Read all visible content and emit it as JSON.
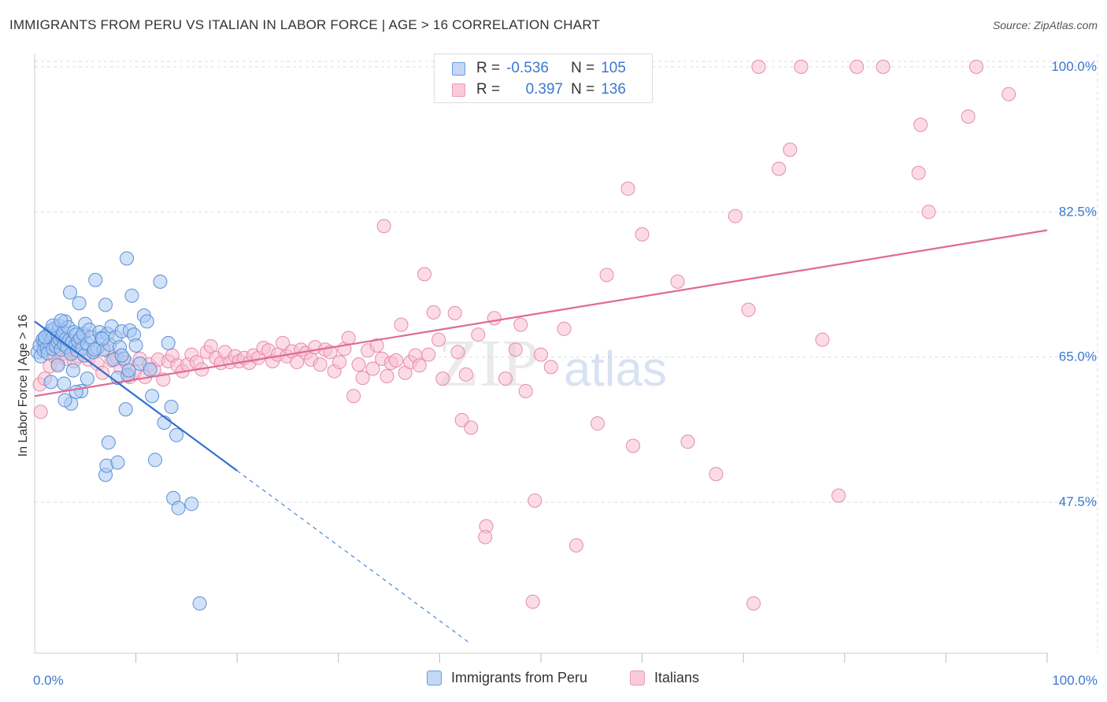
{
  "header": {
    "title": "IMMIGRANTS FROM PERU VS ITALIAN IN LABOR FORCE | AGE > 16 CORRELATION CHART",
    "source": "Source: ZipAtlas.com"
  },
  "legend_stats": {
    "peru": {
      "r_label": "R =",
      "r_value": "-0.536",
      "n_label": "N =",
      "n_value": "105"
    },
    "italians": {
      "r_label": "R =",
      "r_value": "0.397",
      "n_label": "N =",
      "n_value": "136"
    }
  },
  "bottom_legend": {
    "peru": "Immigrants from Peru",
    "italians": "Italians"
  },
  "watermark": {
    "zip": "ZIP",
    "atlas": "atlas"
  },
  "colors": {
    "peru_fill": "#a9c8f2",
    "peru_stroke": "#5a90d8",
    "peru_line": "#2f6fd0",
    "italians_fill": "#f7bfd0",
    "italians_stroke": "#e88aaa",
    "italians_line": "#e06a93",
    "tick_label": "#3b78d0",
    "grid": "#dddddd"
  },
  "chart_data": {
    "type": "scatter",
    "title": "IMMIGRANTS FROM PERU VS ITALIAN IN LABOR FORCE | AGE > 16 CORRELATION CHART",
    "xlabel": "",
    "ylabel": "In Labor Force | Age > 16",
    "xlim": [
      0,
      100
    ],
    "ylim": [
      29.3,
      101.6
    ],
    "x_tick_labels": [
      {
        "value": 0,
        "label": "0.0%"
      },
      {
        "value": 100,
        "label": "100.0%"
      }
    ],
    "y_tick_labels": [
      {
        "value": 100,
        "label": "100.0%"
      },
      {
        "value": 82.5,
        "label": "82.5%"
      },
      {
        "value": 65,
        "label": "65.0%"
      },
      {
        "value": 47.5,
        "label": "47.5%"
      }
    ],
    "grid": true,
    "legend_position": "top-center",
    "series": [
      {
        "name": "Immigrants from Peru",
        "r": -0.536,
        "n": 105,
        "trend": {
          "x": [
            0,
            20
          ],
          "y": [
            69.3,
            51.3
          ],
          "dashed_to": [
            43,
            30.5
          ]
        },
        "points": [
          [
            0.3,
            65.6
          ],
          [
            0.5,
            66.4
          ],
          [
            0.6,
            65.1
          ],
          [
            0.8,
            67.1
          ],
          [
            0.9,
            65.8
          ],
          [
            1.0,
            66.9
          ],
          [
            1.1,
            67.4
          ],
          [
            1.2,
            66.1
          ],
          [
            1.3,
            65.5
          ],
          [
            1.4,
            67.8
          ],
          [
            1.5,
            66.7
          ],
          [
            1.6,
            68.2
          ],
          [
            1.7,
            67.3
          ],
          [
            1.8,
            66.0
          ],
          [
            1.9,
            67.6
          ],
          [
            2.0,
            68.5
          ],
          [
            2.1,
            66.3
          ],
          [
            2.2,
            67.9
          ],
          [
            2.3,
            66.8
          ],
          [
            2.4,
            68.8
          ],
          [
            2.5,
            67.1
          ],
          [
            2.6,
            65.9
          ],
          [
            2.7,
            67.5
          ],
          [
            2.8,
            68.1
          ],
          [
            2.9,
            66.5
          ],
          [
            3.0,
            69.3
          ],
          [
            3.1,
            67.2
          ],
          [
            3.2,
            66.2
          ],
          [
            3.3,
            68.6
          ],
          [
            3.4,
            67.0
          ],
          [
            3.5,
            72.8
          ],
          [
            3.6,
            65.4
          ],
          [
            3.7,
            66.8
          ],
          [
            3.8,
            63.4
          ],
          [
            3.9,
            68.0
          ],
          [
            4.0,
            66.4
          ],
          [
            4.1,
            67.7
          ],
          [
            4.2,
            65.8
          ],
          [
            4.3,
            66.9
          ],
          [
            4.4,
            71.5
          ],
          [
            4.5,
            67.3
          ],
          [
            4.6,
            60.9
          ],
          [
            4.7,
            66.0
          ],
          [
            4.8,
            67.8
          ],
          [
            4.9,
            65.2
          ],
          [
            5.0,
            69.0
          ],
          [
            5.2,
            66.6
          ],
          [
            5.4,
            68.3
          ],
          [
            5.6,
            67.4
          ],
          [
            5.8,
            65.6
          ],
          [
            6.0,
            74.3
          ],
          [
            6.2,
            66.1
          ],
          [
            6.4,
            68.0
          ],
          [
            6.6,
            67.3
          ],
          [
            6.8,
            65.9
          ],
          [
            7.0,
            71.3
          ],
          [
            7.2,
            67.8
          ],
          [
            7.4,
            66.5
          ],
          [
            7.6,
            68.7
          ],
          [
            7.8,
            64.7
          ],
          [
            8.0,
            67.4
          ],
          [
            8.2,
            62.5
          ],
          [
            8.4,
            66.2
          ],
          [
            8.6,
            68.1
          ],
          [
            8.8,
            64.8
          ],
          [
            9.0,
            58.7
          ],
          [
            9.2,
            62.8
          ],
          [
            9.4,
            68.2
          ],
          [
            9.6,
            72.4
          ],
          [
            9.8,
            67.7
          ],
          [
            10.0,
            66.4
          ],
          [
            10.4,
            64.2
          ],
          [
            10.8,
            70.0
          ],
          [
            11.1,
            69.3
          ],
          [
            11.4,
            63.5
          ],
          [
            11.6,
            60.3
          ],
          [
            11.9,
            52.6
          ],
          [
            12.4,
            74.1
          ],
          [
            12.8,
            57.1
          ],
          [
            13.2,
            66.7
          ],
          [
            13.5,
            59.0
          ],
          [
            13.7,
            48.0
          ],
          [
            14.0,
            55.6
          ],
          [
            14.2,
            46.8
          ],
          [
            15.5,
            47.3
          ],
          [
            16.3,
            35.3
          ],
          [
            7.3,
            54.7
          ],
          [
            7.0,
            50.8
          ],
          [
            7.1,
            51.9
          ],
          [
            8.2,
            52.3
          ],
          [
            9.1,
            76.9
          ],
          [
            1.6,
            62.0
          ],
          [
            2.9,
            61.8
          ],
          [
            3.6,
            59.4
          ],
          [
            4.1,
            60.8
          ],
          [
            5.2,
            62.4
          ],
          [
            5.9,
            65.9
          ],
          [
            6.7,
            67.2
          ],
          [
            8.6,
            65.2
          ],
          [
            9.3,
            63.4
          ],
          [
            3.0,
            59.8
          ],
          [
            2.3,
            64.0
          ],
          [
            1.0,
            67.4
          ],
          [
            1.8,
            68.8
          ],
          [
            2.6,
            69.4
          ]
        ]
      },
      {
        "name": "Italians",
        "r": 0.397,
        "n": 136,
        "trend": {
          "x": [
            0,
            100
          ],
          "y": [
            60.3,
            80.3
          ]
        },
        "points": [
          [
            0.5,
            61.7
          ],
          [
            0.6,
            58.4
          ],
          [
            1.0,
            62.4
          ],
          [
            1.5,
            63.9
          ],
          [
            2.0,
            65.0
          ],
          [
            2.3,
            64.2
          ],
          [
            2.7,
            65.4
          ],
          [
            3.1,
            64.8
          ],
          [
            3.5,
            65.9
          ],
          [
            3.9,
            64.5
          ],
          [
            4.3,
            65.1
          ],
          [
            4.8,
            66.1
          ],
          [
            5.3,
            64.7
          ],
          [
            5.8,
            65.6
          ],
          [
            6.2,
            64.2
          ],
          [
            6.7,
            63.1
          ],
          [
            7.2,
            65.8
          ],
          [
            7.6,
            64.6
          ],
          [
            8.1,
            64.9
          ],
          [
            8.5,
            63.7
          ],
          [
            9.0,
            64.4
          ],
          [
            9.4,
            62.6
          ],
          [
            9.9,
            63.2
          ],
          [
            10.4,
            64.8
          ],
          [
            10.9,
            62.6
          ],
          [
            11.3,
            64.1
          ],
          [
            11.8,
            63.5
          ],
          [
            12.2,
            64.7
          ],
          [
            12.7,
            62.3
          ],
          [
            13.2,
            64.5
          ],
          [
            13.6,
            65.2
          ],
          [
            14.1,
            64.0
          ],
          [
            14.6,
            63.3
          ],
          [
            15.1,
            64.1
          ],
          [
            15.5,
            65.3
          ],
          [
            16.0,
            64.4
          ],
          [
            16.5,
            63.5
          ],
          [
            17.0,
            65.6
          ],
          [
            17.4,
            66.3
          ],
          [
            17.9,
            64.9
          ],
          [
            18.4,
            64.3
          ],
          [
            18.8,
            65.6
          ],
          [
            19.3,
            64.4
          ],
          [
            19.8,
            65.1
          ],
          [
            20.2,
            64.5
          ],
          [
            20.7,
            64.9
          ],
          [
            21.2,
            64.3
          ],
          [
            21.6,
            65.2
          ],
          [
            22.1,
            64.9
          ],
          [
            22.6,
            66.1
          ],
          [
            23.1,
            65.8
          ],
          [
            23.5,
            64.5
          ],
          [
            24.0,
            65.3
          ],
          [
            24.5,
            66.7
          ],
          [
            24.9,
            65.1
          ],
          [
            25.4,
            65.7
          ],
          [
            25.9,
            64.4
          ],
          [
            26.3,
            65.9
          ],
          [
            26.8,
            65.5
          ],
          [
            27.3,
            64.7
          ],
          [
            27.7,
            66.2
          ],
          [
            28.2,
            64.1
          ],
          [
            28.7,
            65.9
          ],
          [
            29.2,
            65.6
          ],
          [
            29.6,
            63.3
          ],
          [
            30.1,
            64.4
          ],
          [
            30.6,
            66.0
          ],
          [
            31.0,
            67.3
          ],
          [
            31.5,
            60.3
          ],
          [
            32.0,
            64.1
          ],
          [
            32.4,
            62.5
          ],
          [
            32.9,
            65.8
          ],
          [
            33.4,
            63.6
          ],
          [
            33.8,
            66.4
          ],
          [
            34.3,
            64.8
          ],
          [
            34.8,
            62.7
          ],
          [
            35.2,
            64.3
          ],
          [
            35.7,
            64.6
          ],
          [
            36.2,
            68.9
          ],
          [
            36.6,
            63.1
          ],
          [
            37.1,
            64.4
          ],
          [
            37.6,
            65.2
          ],
          [
            38.0,
            64.0
          ],
          [
            38.5,
            75.0
          ],
          [
            38.9,
            65.3
          ],
          [
            39.4,
            70.4
          ],
          [
            39.9,
            67.1
          ],
          [
            40.3,
            62.4
          ],
          [
            41.5,
            70.3
          ],
          [
            41.8,
            65.6
          ],
          [
            42.2,
            57.4
          ],
          [
            42.6,
            62.9
          ],
          [
            43.1,
            56.5
          ],
          [
            43.8,
            67.7
          ],
          [
            44.6,
            44.6
          ],
          [
            45.4,
            69.7
          ],
          [
            46.5,
            62.4
          ],
          [
            47.5,
            65.9
          ],
          [
            48.0,
            68.9
          ],
          [
            48.5,
            60.9
          ],
          [
            49.4,
            47.7
          ],
          [
            50.0,
            65.3
          ],
          [
            51.0,
            63.8
          ],
          [
            52.3,
            68.4
          ],
          [
            53.5,
            42.3
          ],
          [
            55.6,
            57.0
          ],
          [
            56.5,
            74.9
          ],
          [
            59.1,
            54.3
          ],
          [
            60.0,
            79.8
          ],
          [
            63.5,
            74.1
          ],
          [
            64.5,
            54.8
          ],
          [
            67.3,
            50.9
          ],
          [
            69.2,
            82.0
          ],
          [
            70.5,
            70.7
          ],
          [
            73.5,
            87.7
          ],
          [
            77.8,
            67.1
          ],
          [
            79.4,
            48.3
          ],
          [
            74.6,
            90.0
          ],
          [
            87.5,
            93.0
          ],
          [
            92.2,
            94.0
          ],
          [
            88.3,
            82.5
          ],
          [
            87.3,
            87.2
          ],
          [
            56.5,
            100.0
          ],
          [
            71.5,
            100.0
          ],
          [
            75.7,
            100.0
          ],
          [
            81.2,
            100.0
          ],
          [
            83.8,
            100.0
          ],
          [
            93.0,
            100.0
          ],
          [
            96.2,
            96.7
          ],
          [
            58.6,
            85.3
          ],
          [
            71.0,
            35.3
          ],
          [
            49.2,
            35.5
          ],
          [
            44.5,
            43.3
          ],
          [
            34.5,
            80.8
          ]
        ]
      }
    ]
  }
}
